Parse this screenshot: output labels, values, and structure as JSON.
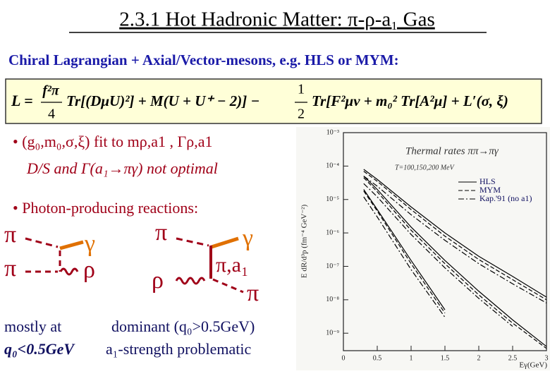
{
  "title": "2.3.1 Hot Hadronic Matter: π-ρ-a₁ Gas",
  "subtitle": "Chiral Lagrangian + Axial/Vector-mesons, e.g. HLS or MYM:",
  "formula": {
    "lhs": "L =",
    "frac1": {
      "num": "f²π",
      "den": "4"
    },
    "part1": "Tr[(DμU)²] + M(U + U⁺ − 2)] −",
    "frac2": {
      "num": "1",
      "den": "2"
    },
    "part2": "Tr[F²μν + m₀² Tr[A²μ] + L′(σ, ξ)"
  },
  "bullets": [
    "• (g₀,m₀,σ,ξ)  fit to  mρ,a1 ,  Γρ,a1",
    "D/S  and  Γ(a₁→πγ)  not optimal",
    "• Photon-producing reactions:"
  ],
  "diagrams": [
    {
      "labels": [
        "π",
        "γ",
        "π",
        "ρ"
      ]
    },
    {
      "labels": [
        "π",
        "γ",
        "π,a₁",
        "ρ",
        "π"
      ]
    }
  ],
  "notes": [
    [
      "mostly at",
      "q₀<0.5GeV"
    ],
    [
      "dominant (q₀>0.5GeV)",
      "a₁-strength problematic"
    ]
  ],
  "chart_data": {
    "type": "line",
    "ylog": true,
    "grid": false,
    "legend": "upper right",
    "annotation": "Thermal rates ππ→πγ",
    "temperatures": "T=100,150,200 MeV",
    "xlabel": "Eγ(GeV)",
    "ylabel": "E dR/d³p (fm⁻⁴ GeV⁻²)",
    "xlim": [
      0,
      3
    ],
    "ylim": [
      3e-10,
      0.001
    ],
    "xticks": [
      0,
      0.5,
      1,
      1.5,
      2,
      2.5,
      3
    ],
    "yticks": [
      {
        "value": 0.001,
        "label": "10⁻³"
      },
      {
        "value": 0.0001,
        "label": "10⁻⁴"
      },
      {
        "value": 1e-05,
        "label": "10⁻⁵"
      },
      {
        "value": 1e-06,
        "label": "10⁻⁶"
      },
      {
        "value": 1e-07,
        "label": "10⁻⁷"
      },
      {
        "value": 1e-08,
        "label": "10⁻⁸"
      },
      {
        "value": 1e-09,
        "label": "10⁻⁹"
      }
    ],
    "x": [
      0.3,
      0.5,
      1,
      1.5,
      2,
      2.5,
      3
    ],
    "series": [
      {
        "name": "HLS",
        "color": "#000000",
        "dash": "none",
        "curves": [
          [
            8e-05,
            4e-05,
            6e-06,
            1e-06,
            2e-07,
            5e-08,
            1.2e-08
          ],
          [
            5e-05,
            2e-05,
            1.5e-06,
            1.5e-07,
            1.8e-08,
            2.5e-09,
            4e-10
          ],
          [
            2e-05,
            5e-06,
            1.5e-07,
            5e-09,
            null,
            null,
            null
          ]
        ]
      },
      {
        "name": "MYM",
        "color": "#000000",
        "dash": "6 3",
        "curves": [
          [
            7e-05,
            3.5e-05,
            5e-06,
            8e-07,
            1.6e-07,
            4e-08,
            1e-08
          ],
          [
            4.5e-05,
            1.7e-05,
            1.2e-06,
            1.2e-07,
            1.4e-08,
            2e-09,
            3.5e-10
          ],
          [
            1.8e-05,
            4.5e-06,
            1.2e-07,
            4e-09,
            null,
            null,
            null
          ]
        ]
      },
      {
        "name": "Kap.'91 (no a1)",
        "color": "#000000",
        "dash": "8 3 2 3",
        "curves": [
          [
            5e-05,
            2.5e-05,
            3.5e-06,
            6e-07,
            1.2e-07,
            3e-08,
            8e-09
          ],
          [
            3e-05,
            1.2e-05,
            9e-07,
            9e-08,
            1.1e-08,
            1.6e-09,
            null
          ],
          [
            1.2e-05,
            3e-06,
            8e-08,
            3e-09,
            null,
            null,
            null
          ]
        ]
      }
    ]
  }
}
